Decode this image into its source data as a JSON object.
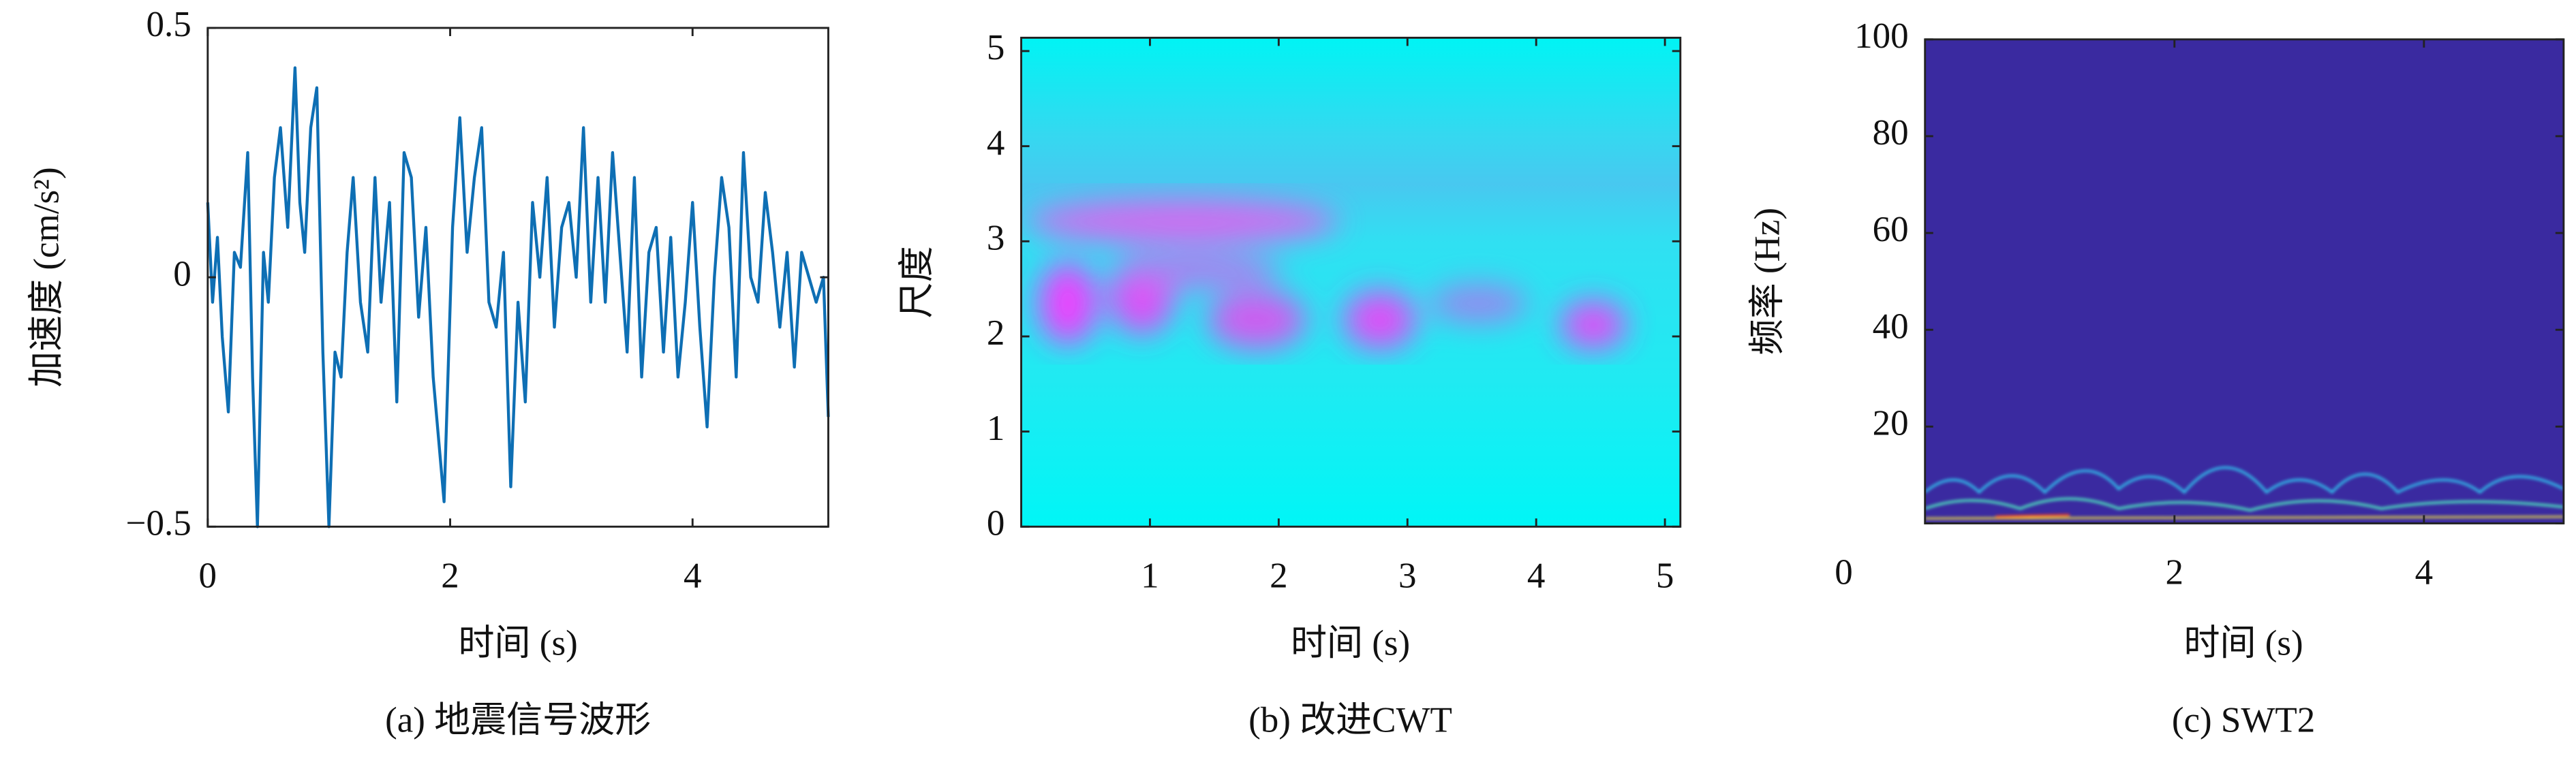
{
  "chart_data": [
    {
      "type": "line",
      "caption": "(a) 地震信号波形",
      "xlabel": "时间 (s)",
      "ylabel": "加速度 (cm/s²)",
      "x": [
        0,
        0.04,
        0.08,
        0.12,
        0.17,
        0.22,
        0.27,
        0.33,
        0.37,
        0.41,
        0.46,
        0.5,
        0.55,
        0.6,
        0.66,
        0.72,
        0.76,
        0.8,
        0.85,
        0.9,
        0.95,
        1.0,
        1.05,
        1.1,
        1.15,
        1.2,
        1.26,
        1.32,
        1.38,
        1.43,
        1.5,
        1.56,
        1.62,
        1.68,
        1.74,
        1.8,
        1.86,
        1.95,
        2.02,
        2.08,
        2.14,
        2.2,
        2.26,
        2.32,
        2.38,
        2.44,
        2.5,
        2.56,
        2.62,
        2.68,
        2.74,
        2.8,
        2.86,
        2.92,
        2.98,
        3.04,
        3.1,
        3.16,
        3.22,
        3.28,
        3.34,
        3.4,
        3.46,
        3.52,
        3.58,
        3.64,
        3.7,
        3.76,
        3.82,
        3.88,
        3.94,
        4.0,
        4.06,
        4.12,
        4.18,
        4.24,
        4.3,
        4.36,
        4.42,
        4.48,
        4.54,
        4.6,
        4.66,
        4.72,
        4.78,
        4.84,
        4.9,
        4.96,
        5.02,
        5.08,
        5.12
      ],
      "values": [
        0.15,
        -0.05,
        0.08,
        -0.12,
        -0.27,
        0.05,
        0.02,
        0.25,
        -0.2,
        -0.5,
        0.05,
        -0.05,
        0.2,
        0.3,
        0.1,
        0.42,
        0.15,
        0.05,
        0.3,
        0.38,
        -0.15,
        -0.5,
        -0.15,
        -0.2,
        0.05,
        0.2,
        -0.05,
        -0.15,
        0.2,
        -0.05,
        0.15,
        -0.25,
        0.25,
        0.2,
        -0.08,
        0.1,
        -0.2,
        -0.45,
        0.1,
        0.32,
        0.05,
        0.2,
        0.3,
        -0.05,
        -0.1,
        0.05,
        -0.42,
        -0.05,
        -0.25,
        0.15,
        0.0,
        0.2,
        -0.1,
        0.1,
        0.15,
        0.0,
        0.3,
        -0.05,
        0.2,
        -0.05,
        0.25,
        0.05,
        -0.15,
        0.2,
        -0.2,
        0.05,
        0.1,
        -0.15,
        0.08,
        -0.2,
        -0.05,
        0.15,
        -0.1,
        -0.3,
        0.0,
        0.2,
        0.1,
        -0.2,
        0.25,
        0.0,
        -0.05,
        0.17,
        0.05,
        -0.1,
        0.05,
        -0.18,
        0.05,
        0.0,
        -0.05,
        0.0,
        -0.28
      ],
      "color": "#0e6fb4",
      "xlim": [
        0,
        5.12
      ],
      "ylim": [
        -0.5,
        0.5
      ],
      "xticks": [
        0,
        2,
        4
      ],
      "yticks": [
        {
          "value": -0.5,
          "label": "−0.5"
        },
        0,
        0.5
      ]
    },
    {
      "type": "heatmap",
      "caption": "(b) 改进CWT",
      "xlabel": "时间 (s)",
      "ylabel": "尺度",
      "xlim": [
        0,
        5.12
      ],
      "ylim": [
        0,
        5.14
      ],
      "xticks": [
        1,
        2,
        3,
        4,
        5
      ],
      "yticks": [
        0,
        1,
        2,
        3,
        4,
        5
      ]
    },
    {
      "type": "heatmap",
      "caption": "(c) SWT2",
      "xlabel": "时间 (s)",
      "ylabel": "频率 (Hz)",
      "xlim": [
        0,
        5.12
      ],
      "ylim": [
        0,
        100
      ],
      "xticks": [
        2,
        4
      ],
      "yticks": [
        0,
        20,
        40,
        60,
        80,
        100
      ]
    }
  ]
}
